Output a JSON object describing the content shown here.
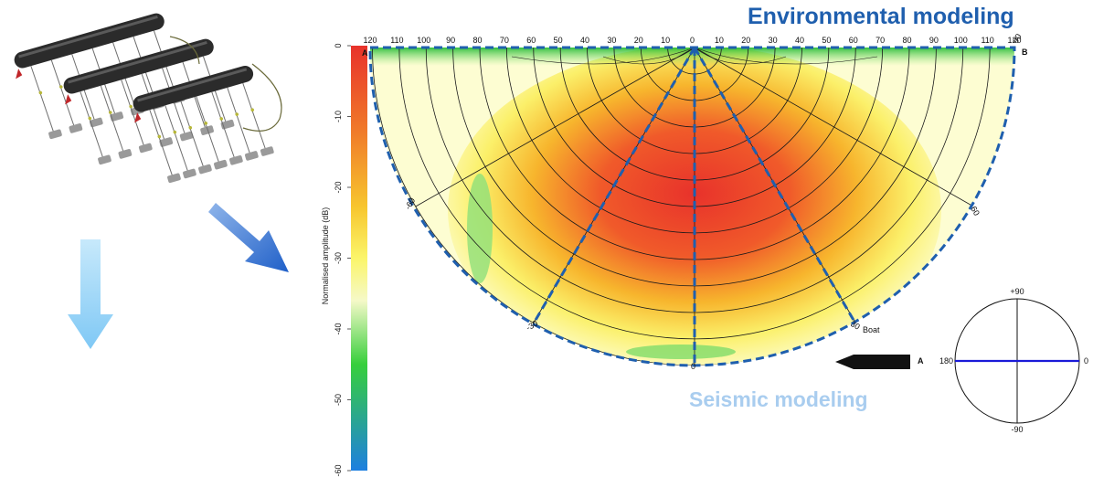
{
  "titles": {
    "environmental": "Environmental modeling",
    "seismic": "Seismic modeling"
  },
  "colorbar": {
    "label": "Normalised amplitude (dB)",
    "ticks": [
      "0",
      "-10",
      "-20",
      "-30",
      "-40",
      "-50",
      "-60"
    ],
    "colors": [
      "#e8322b",
      "#f07a2a",
      "#f7c62e",
      "#fbf56a",
      "#f5f9c8",
      "#37cf3c",
      "#1d7fe0"
    ]
  },
  "polar_plot": {
    "top_ticks": [
      "120",
      "110",
      "100",
      "90",
      "80",
      "70",
      "60",
      "50",
      "40",
      "30",
      "20",
      "10",
      "0",
      "10",
      "20",
      "30",
      "40",
      "50",
      "60",
      "70",
      "80",
      "90",
      "100",
      "110",
      "120"
    ],
    "radial_labels": {
      "left_end": "A",
      "right_end": "B",
      "right_90": "90",
      "left_mid": "-60",
      "right_mid": "60",
      "left_low": "-30",
      "right_low": "30",
      "bottom": "0"
    },
    "boat_label": "Boat",
    "boat_end_label": "A"
  },
  "orientation_circle": {
    "top": "+90",
    "bottom": "-90",
    "left": "180",
    "right": "0",
    "line_color": "#1a1ad8"
  },
  "arrows": {
    "down_color": "#8fd0f7",
    "diagonal_color": "#2f6fd0"
  }
}
